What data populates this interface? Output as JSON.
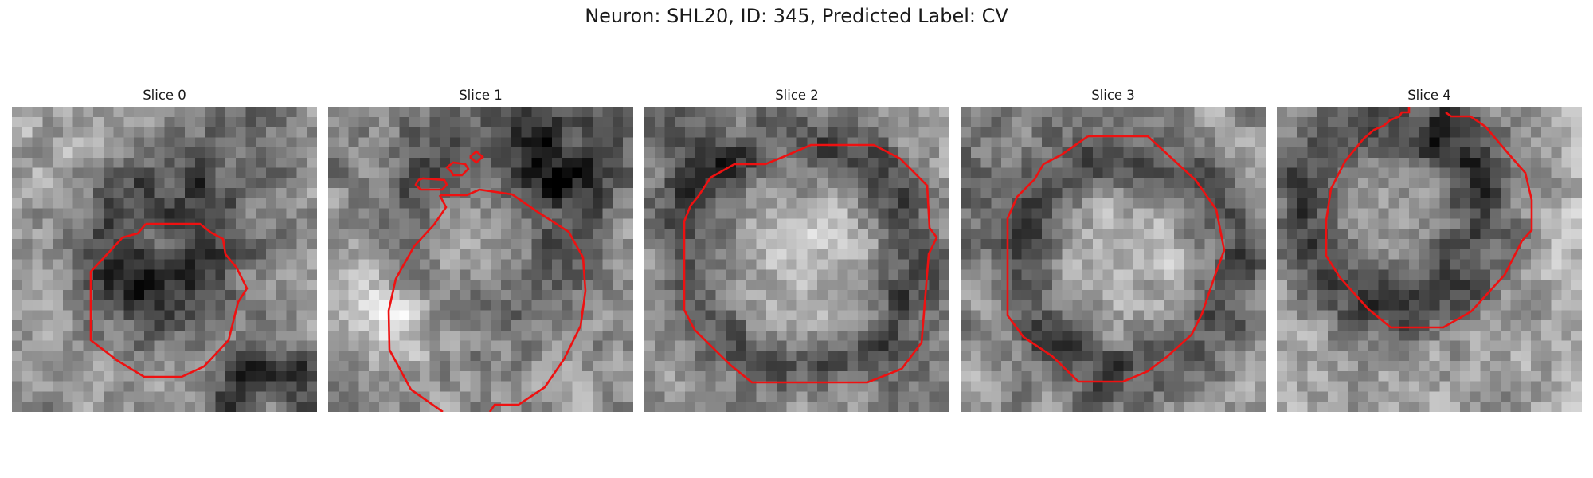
{
  "figure": {
    "title": "Neuron: SHL20, ID: 345, Predicted Label: CV",
    "contour_color": "#ee1111"
  },
  "slices": [
    {
      "label": "Slice 0"
    },
    {
      "label": "Slice 1"
    },
    {
      "label": "Slice 2"
    },
    {
      "label": "Slice 3"
    },
    {
      "label": "Slice 4"
    }
  ]
}
